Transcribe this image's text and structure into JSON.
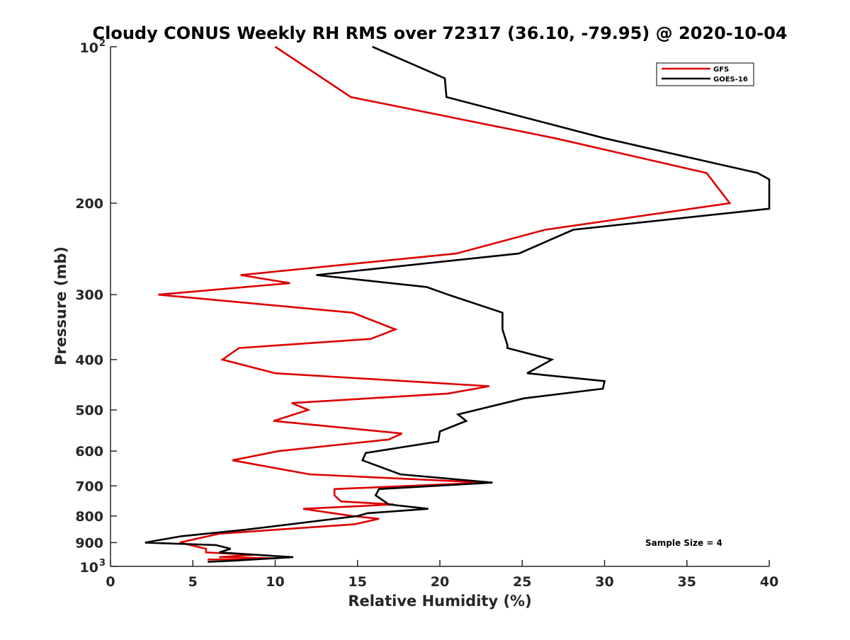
{
  "chart_data": {
    "type": "line",
    "title": "Cloudy CONUS Weekly RH RMS over 72317 (36.10, -79.95) @ 2020-10-04",
    "xlabel": "Relative Humidity (%)",
    "ylabel": "Pressure (mb)",
    "xlim": [
      0,
      40
    ],
    "ylim": [
      100,
      1000
    ],
    "yscale": "log",
    "y_reversed": true,
    "grid": false,
    "legend_position": "top-right",
    "x_ticks": [
      "0",
      "5",
      "10",
      "15",
      "20",
      "25",
      "30",
      "35",
      "40"
    ],
    "y_ticks": [
      {
        "value": 100,
        "base": "10",
        "exp": "2"
      },
      {
        "value": 200,
        "label": "200"
      },
      {
        "value": 300,
        "label": "300"
      },
      {
        "value": 400,
        "label": "400"
      },
      {
        "value": 500,
        "label": "500"
      },
      {
        "value": 600,
        "label": "600"
      },
      {
        "value": 700,
        "label": "700"
      },
      {
        "value": 800,
        "label": "800"
      },
      {
        "value": 900,
        "label": "900"
      },
      {
        "value": 1000,
        "base": "10",
        "exp": "3"
      }
    ],
    "annotation": "Sample Size = 4",
    "series": [
      {
        "name": "GFS",
        "color": "#dd0000",
        "points": [
          [
            10.0,
            100
          ],
          [
            14.6,
            125
          ],
          [
            27.0,
            150
          ],
          [
            36.2,
            175
          ],
          [
            37.6,
            200
          ],
          [
            26.4,
            225
          ],
          [
            21.0,
            250
          ],
          [
            7.9,
            275
          ],
          [
            10.9,
            285
          ],
          [
            2.9,
            300
          ],
          [
            14.7,
            325
          ],
          [
            17.3,
            350
          ],
          [
            15.8,
            365
          ],
          [
            7.8,
            380
          ],
          [
            6.8,
            400
          ],
          [
            10.0,
            425
          ],
          [
            23.0,
            450
          ],
          [
            20.5,
            465
          ],
          [
            11.0,
            485
          ],
          [
            12.0,
            500
          ],
          [
            9.9,
            525
          ],
          [
            17.7,
            555
          ],
          [
            16.9,
            570
          ],
          [
            10.2,
            600
          ],
          [
            7.4,
            625
          ],
          [
            12.1,
            665
          ],
          [
            22.8,
            690
          ],
          [
            13.6,
            710
          ],
          [
            13.6,
            730
          ],
          [
            14.0,
            750
          ],
          [
            17.2,
            760
          ],
          [
            11.7,
            775
          ],
          [
            14.7,
            800
          ],
          [
            16.3,
            810
          ],
          [
            14.8,
            830
          ],
          [
            6.6,
            865
          ],
          [
            4.2,
            900
          ],
          [
            5.8,
            925
          ],
          [
            5.8,
            940
          ],
          [
            8.7,
            950
          ],
          [
            6.6,
            960
          ],
          [
            10.1,
            965
          ],
          [
            5.9,
            970
          ]
        ]
      },
      {
        "name": "GOES-16",
        "color": "#000000",
        "points": [
          [
            15.9,
            100
          ],
          [
            20.3,
            115
          ],
          [
            20.4,
            125
          ],
          [
            30.0,
            150
          ],
          [
            39.3,
            175
          ],
          [
            40.0,
            180
          ],
          [
            40.0,
            205
          ],
          [
            28.1,
            225
          ],
          [
            24.8,
            250
          ],
          [
            12.5,
            275
          ],
          [
            19.2,
            290
          ],
          [
            20.5,
            300
          ],
          [
            23.8,
            325
          ],
          [
            23.8,
            350
          ],
          [
            24.1,
            375
          ],
          [
            24.1,
            380
          ],
          [
            26.8,
            400
          ],
          [
            25.3,
            425
          ],
          [
            30.0,
            440
          ],
          [
            29.9,
            455
          ],
          [
            25.1,
            475
          ],
          [
            21.1,
            510
          ],
          [
            21.6,
            525
          ],
          [
            20.0,
            550
          ],
          [
            19.9,
            575
          ],
          [
            15.5,
            605
          ],
          [
            15.3,
            625
          ],
          [
            17.6,
            665
          ],
          [
            23.2,
            690
          ],
          [
            16.3,
            710
          ],
          [
            16.1,
            730
          ],
          [
            16.9,
            760
          ],
          [
            19.3,
            775
          ],
          [
            15.6,
            790
          ],
          [
            15.0,
            800
          ],
          [
            8.2,
            850
          ],
          [
            4.3,
            875
          ],
          [
            2.1,
            900
          ],
          [
            6.4,
            910
          ],
          [
            7.3,
            925
          ],
          [
            6.6,
            940
          ],
          [
            11.1,
            960
          ],
          [
            7.5,
            975
          ],
          [
            5.9,
            980
          ]
        ]
      }
    ]
  }
}
